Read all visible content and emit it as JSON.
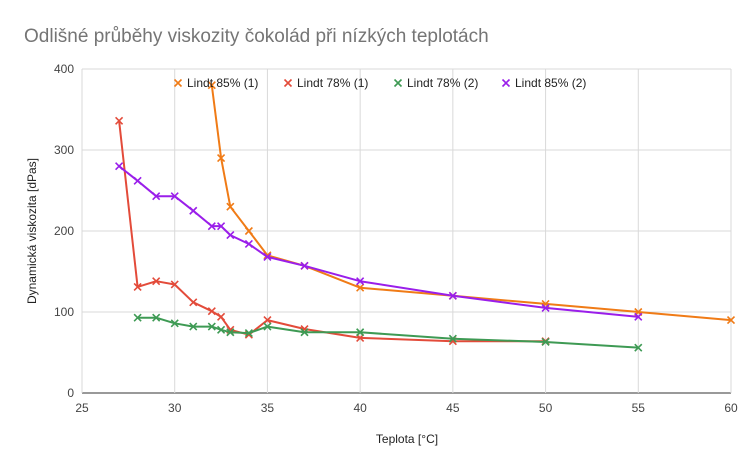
{
  "chart_data": {
    "type": "line",
    "title": "Odlišné průběhy viskozity čokolád při nízkých teplotách",
    "xlabel": "Teplota [°C]",
    "ylabel": "Dynamická viskozita [dPas]",
    "xlim": [
      25,
      60
    ],
    "ylim": [
      0,
      400
    ],
    "xticks": [
      25,
      30,
      35,
      40,
      45,
      50,
      55,
      60
    ],
    "yticks": [
      0,
      100,
      200,
      300,
      400
    ],
    "grid": true,
    "legend_position": "top",
    "series": [
      {
        "name": "Lindt 85% (1)",
        "color": "#f07b16",
        "points": [
          [
            32,
            380
          ],
          [
            32.5,
            290
          ],
          [
            33,
            230
          ],
          [
            34,
            200
          ],
          [
            35,
            170
          ],
          [
            37,
            157
          ],
          [
            40,
            130
          ],
          [
            45,
            120
          ],
          [
            50,
            110
          ],
          [
            55,
            100
          ],
          [
            60,
            90
          ]
        ]
      },
      {
        "name": "Lindt 78% (1)",
        "color": "#e34b3a",
        "points": [
          [
            27,
            336
          ],
          [
            28,
            131
          ],
          [
            29,
            138
          ],
          [
            30,
            134
          ],
          [
            31,
            112
          ],
          [
            32,
            101
          ],
          [
            32.5,
            94
          ],
          [
            33,
            78
          ],
          [
            34,
            72
          ],
          [
            35,
            90
          ],
          [
            37,
            79
          ],
          [
            40,
            68
          ],
          [
            45,
            64
          ],
          [
            50,
            64
          ]
        ]
      },
      {
        "name": "Lindt 78% (2)",
        "color": "#3e9a54",
        "points": [
          [
            28,
            93
          ],
          [
            29,
            93
          ],
          [
            30,
            86
          ],
          [
            31,
            82
          ],
          [
            32,
            82
          ],
          [
            32.5,
            78
          ],
          [
            33,
            75
          ],
          [
            34,
            74
          ],
          [
            35,
            82
          ],
          [
            37,
            75
          ],
          [
            40,
            75
          ],
          [
            45,
            67
          ],
          [
            50,
            63
          ],
          [
            55,
            56
          ]
        ]
      },
      {
        "name": "Lindt 85% (2)",
        "color": "#9a1eea",
        "points": [
          [
            27,
            280
          ],
          [
            28,
            262
          ],
          [
            29,
            243
          ],
          [
            30,
            243
          ],
          [
            31,
            225
          ],
          [
            32,
            206
          ],
          [
            32.5,
            206
          ],
          [
            33,
            195
          ],
          [
            34,
            184
          ],
          [
            35,
            168
          ],
          [
            37,
            157
          ],
          [
            40,
            138
          ],
          [
            45,
            120
          ],
          [
            50,
            105
          ],
          [
            55,
            94
          ]
        ]
      }
    ]
  }
}
